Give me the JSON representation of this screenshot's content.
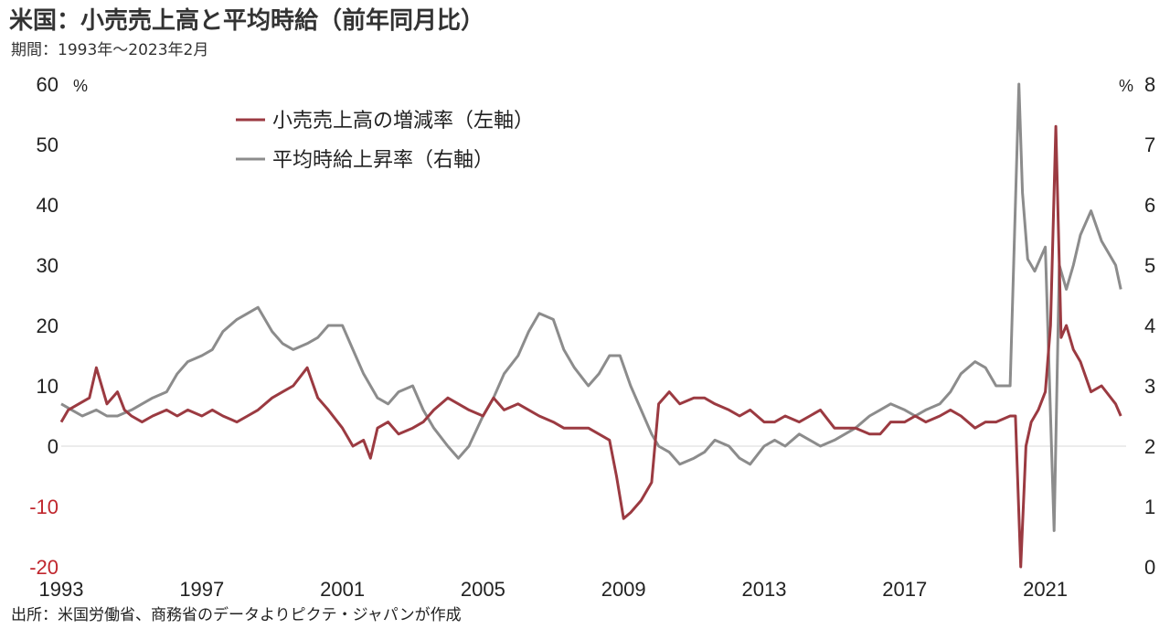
{
  "header": {
    "title": "米国：小売売上高と平均時給（前年同月比）",
    "period": "期間：1993年～2023年2月"
  },
  "footer": {
    "source": "出所：米国労働省、商務省のデータよりピクテ・ジャパンが作成"
  },
  "colors": {
    "retail": "#9b3a41",
    "wage": "#8c8c8c",
    "negative_tick": "#c0262d",
    "zero_line": "#d9d9d9"
  },
  "chart_data": {
    "type": "line",
    "title": "米国：小売売上高と平均時給（前年同月比）",
    "x_ticks": [
      "1993",
      "1997",
      "2001",
      "2005",
      "2009",
      "2013",
      "2017",
      "2021"
    ],
    "xlim": [
      1993.0,
      2023.3
    ],
    "y_left": {
      "unit": "%",
      "ylim": [
        -20,
        60
      ],
      "ticks": [
        -20,
        -10,
        0,
        10,
        20,
        30,
        40,
        50,
        60
      ]
    },
    "y_right": {
      "unit": "%",
      "ylim": [
        0,
        8
      ],
      "ticks": [
        0,
        1,
        2,
        3,
        4,
        5,
        6,
        7,
        8
      ]
    },
    "grid": false,
    "legend_position": "top-left",
    "series": [
      {
        "name": "小売売上高の増減率（左軸）",
        "axis": "left",
        "x": [
          1993.0,
          1993.2,
          1993.5,
          1993.8,
          1994.0,
          1994.3,
          1994.6,
          1994.8,
          1995.0,
          1995.3,
          1995.6,
          1996.0,
          1996.3,
          1996.6,
          1997.0,
          1997.3,
          1997.6,
          1998.0,
          1998.3,
          1998.6,
          1999.0,
          1999.3,
          1999.6,
          2000.0,
          2000.3,
          2000.6,
          2001.0,
          2001.3,
          2001.6,
          2001.8,
          2002.0,
          2002.3,
          2002.6,
          2003.0,
          2003.3,
          2003.6,
          2004.0,
          2004.3,
          2004.6,
          2005.0,
          2005.3,
          2005.6,
          2006.0,
          2006.3,
          2006.6,
          2007.0,
          2007.3,
          2007.6,
          2008.0,
          2008.3,
          2008.6,
          2008.8,
          2009.0,
          2009.2,
          2009.5,
          2009.8,
          2010.0,
          2010.3,
          2010.6,
          2011.0,
          2011.3,
          2011.6,
          2012.0,
          2012.3,
          2012.6,
          2013.0,
          2013.3,
          2013.6,
          2014.0,
          2014.3,
          2014.6,
          2015.0,
          2015.3,
          2015.6,
          2016.0,
          2016.3,
          2016.6,
          2017.0,
          2017.3,
          2017.6,
          2018.0,
          2018.3,
          2018.6,
          2019.0,
          2019.3,
          2019.6,
          2020.0,
          2020.15,
          2020.3,
          2020.45,
          2020.6,
          2020.8,
          2021.0,
          2021.15,
          2021.3,
          2021.45,
          2021.6,
          2021.8,
          2022.0,
          2022.3,
          2022.6,
          2023.0,
          2023.15
        ],
        "values": [
          4,
          6,
          7,
          8,
          13,
          7,
          9,
          6,
          5,
          4,
          5,
          6,
          5,
          6,
          5,
          6,
          5,
          4,
          5,
          6,
          8,
          9,
          10,
          13,
          8,
          6,
          3,
          0,
          1,
          -2,
          3,
          4,
          2,
          3,
          4,
          6,
          8,
          7,
          6,
          5,
          8,
          6,
          7,
          6,
          5,
          4,
          3,
          3,
          3,
          2,
          1,
          -5,
          -12,
          -11,
          -9,
          -6,
          7,
          9,
          7,
          8,
          8,
          7,
          6,
          5,
          6,
          4,
          4,
          5,
          4,
          5,
          6,
          3,
          3,
          3,
          2,
          2,
          4,
          4,
          5,
          4,
          5,
          6,
          5,
          3,
          4,
          4,
          5,
          5,
          -20,
          0,
          4,
          6,
          9,
          20,
          53,
          18,
          20,
          16,
          14,
          9,
          10,
          7,
          5
        ]
      },
      {
        "name": "平均時給上昇率（右軸）",
        "axis": "right",
        "x": [
          1993.0,
          1993.3,
          1993.6,
          1994.0,
          1994.3,
          1994.6,
          1995.0,
          1995.3,
          1995.6,
          1996.0,
          1996.3,
          1996.6,
          1997.0,
          1997.3,
          1997.6,
          1998.0,
          1998.3,
          1998.6,
          1999.0,
          1999.3,
          1999.6,
          2000.0,
          2000.3,
          2000.6,
          2001.0,
          2001.3,
          2001.6,
          2002.0,
          2002.3,
          2002.6,
          2003.0,
          2003.3,
          2003.6,
          2004.0,
          2004.3,
          2004.6,
          2005.0,
          2005.3,
          2005.6,
          2006.0,
          2006.3,
          2006.6,
          2007.0,
          2007.3,
          2007.6,
          2008.0,
          2008.3,
          2008.6,
          2008.9,
          2009.2,
          2009.5,
          2009.8,
          2010.0,
          2010.3,
          2010.6,
          2011.0,
          2011.3,
          2011.6,
          2012.0,
          2012.3,
          2012.6,
          2013.0,
          2013.3,
          2013.6,
          2014.0,
          2014.3,
          2014.6,
          2015.0,
          2015.3,
          2015.6,
          2016.0,
          2016.3,
          2016.6,
          2017.0,
          2017.3,
          2017.6,
          2018.0,
          2018.3,
          2018.6,
          2019.0,
          2019.3,
          2019.6,
          2020.0,
          2020.25,
          2020.35,
          2020.5,
          2020.7,
          2021.0,
          2021.25,
          2021.4,
          2021.6,
          2021.8,
          2022.0,
          2022.3,
          2022.6,
          2023.0,
          2023.15
        ],
        "values": [
          2.7,
          2.6,
          2.5,
          2.6,
          2.5,
          2.5,
          2.6,
          2.7,
          2.8,
          2.9,
          3.2,
          3.4,
          3.5,
          3.6,
          3.9,
          4.1,
          4.2,
          4.3,
          3.9,
          3.7,
          3.6,
          3.7,
          3.8,
          4.0,
          4.0,
          3.6,
          3.2,
          2.8,
          2.7,
          2.9,
          3.0,
          2.6,
          2.3,
          2.0,
          1.8,
          2.0,
          2.5,
          2.8,
          3.2,
          3.5,
          3.9,
          4.2,
          4.1,
          3.6,
          3.3,
          3.0,
          3.2,
          3.5,
          3.5,
          3.0,
          2.6,
          2.2,
          2.0,
          1.9,
          1.7,
          1.8,
          1.9,
          2.1,
          2.0,
          1.8,
          1.7,
          2.0,
          2.1,
          2.0,
          2.2,
          2.1,
          2.0,
          2.1,
          2.2,
          2.3,
          2.5,
          2.6,
          2.7,
          2.6,
          2.5,
          2.6,
          2.7,
          2.9,
          3.2,
          3.4,
          3.3,
          3.0,
          3.0,
          8.0,
          6.2,
          5.1,
          4.9,
          5.3,
          0.6,
          5.0,
          4.6,
          5.0,
          5.5,
          5.9,
          5.4,
          5.0,
          4.6
        ]
      }
    ]
  }
}
